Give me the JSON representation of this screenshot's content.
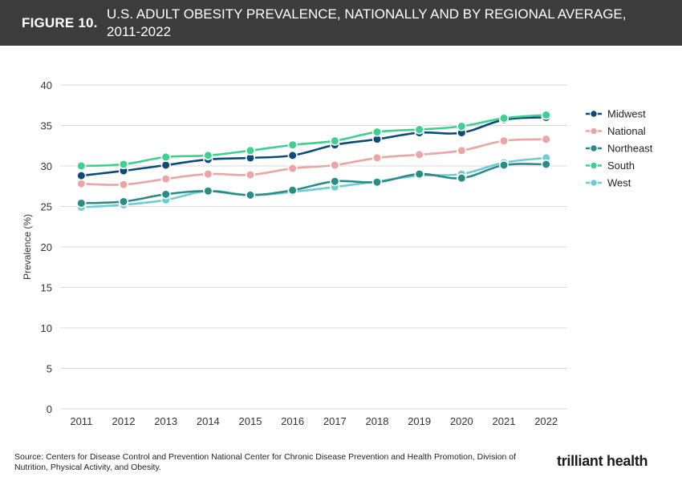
{
  "header": {
    "figure_label": "FIGURE 10.",
    "title_line1": "U.S. ADULT OBESITY PREVALENCE, NATIONALLY AND BY REGIONAL AVERAGE,",
    "title_line2": "2011-2022"
  },
  "chart_data": {
    "type": "line",
    "title": "U.S. ADULT OBESITY PREVALENCE, NATIONALLY AND BY REGIONAL AVERAGE, 2011-2022",
    "xlabel": "",
    "ylabel": "Prevalence (%)",
    "ylim": [
      0,
      40
    ],
    "yticks": [
      0,
      5,
      10,
      15,
      20,
      25,
      30,
      35,
      40
    ],
    "grid": true,
    "legend_position": "right",
    "categories": [
      "2011",
      "2012",
      "2013",
      "2014",
      "2015",
      "2016",
      "2017",
      "2018",
      "2019",
      "2020",
      "2021",
      "2022"
    ],
    "series": [
      {
        "name": "Midwest",
        "color": "#0d4a7a",
        "values": [
          28.8,
          29.4,
          30.1,
          30.8,
          31.0,
          31.3,
          32.6,
          33.3,
          34.1,
          34.1,
          35.7,
          36.0
        ]
      },
      {
        "name": "National",
        "color": "#eaa6a3",
        "values": [
          27.8,
          27.7,
          28.4,
          29.0,
          28.9,
          29.7,
          30.1,
          31.0,
          31.4,
          31.9,
          33.1,
          33.3
        ]
      },
      {
        "name": "Northeast",
        "color": "#2a8c86",
        "values": [
          25.4,
          25.6,
          26.5,
          26.9,
          26.4,
          27.0,
          28.1,
          28.0,
          29.0,
          28.5,
          30.1,
          30.2
        ]
      },
      {
        "name": "South",
        "color": "#3dd08f",
        "values": [
          30.0,
          30.2,
          31.1,
          31.3,
          31.9,
          32.6,
          33.1,
          34.2,
          34.5,
          34.9,
          35.9,
          36.3
        ]
      },
      {
        "name": "West",
        "color": "#6cccd8",
        "values": [
          24.9,
          25.2,
          25.8,
          26.9,
          26.4,
          26.8,
          27.4,
          28.1,
          28.8,
          29.0,
          30.4,
          31.0
        ]
      }
    ]
  },
  "footer": {
    "source": "Source: Centers for Disease Control and Prevention National Center for Chronic Disease Prevention and Health Promotion, Division of Nutrition, Physical Activity, and Obesity.",
    "logo_text": "trilliant health"
  }
}
